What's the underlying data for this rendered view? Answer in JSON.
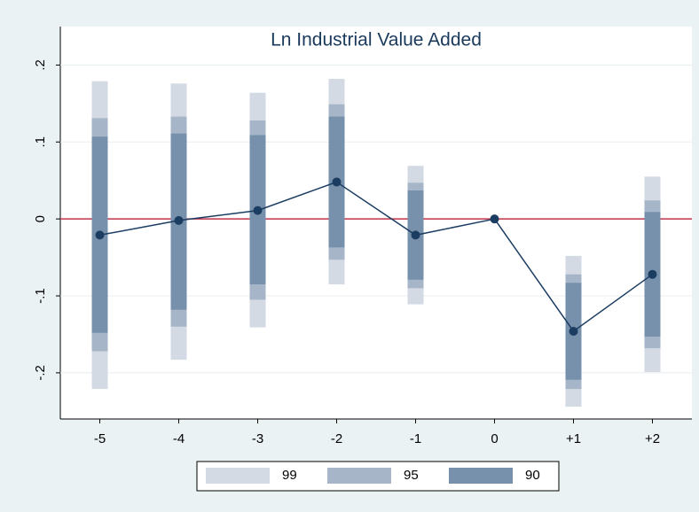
{
  "chart_data": {
    "type": "event-study",
    "title": "Ln Industrial Value Added",
    "categories": [
      "-5",
      "-4",
      "-3",
      "-2",
      "-1",
      "0",
      "+1",
      "+2"
    ],
    "ylim": [
      -0.26,
      0.25
    ],
    "yticks": [
      {
        "value": -0.2,
        "label": "-.2"
      },
      {
        "value": -0.1,
        "label": "-.1"
      },
      0,
      {
        "value": 0.1,
        "label": ".1"
      },
      {
        "value": 0.2,
        "label": ".2"
      }
    ],
    "grid": true,
    "reference_line": {
      "value": 0,
      "color": "#c0324a"
    },
    "series": [
      {
        "name": "99",
        "color": "#d3dae4",
        "lower": [
          -0.221,
          -0.183,
          -0.141,
          -0.085,
          -0.111,
          0,
          -0.244,
          -0.199
        ],
        "upper": [
          0.179,
          0.176,
          0.164,
          0.182,
          0.069,
          0,
          -0.048,
          0.055
        ]
      },
      {
        "name": "95",
        "color": "#a6b6c8",
        "lower": [
          -0.172,
          -0.14,
          -0.105,
          -0.053,
          -0.09,
          0,
          -0.221,
          -0.168
        ],
        "upper": [
          0.131,
          0.133,
          0.128,
          0.149,
          0.047,
          0,
          -0.072,
          0.024
        ]
      },
      {
        "name": "90",
        "color": "#7790ab",
        "lower": [
          -0.148,
          -0.118,
          -0.085,
          -0.037,
          -0.079,
          0,
          -0.209,
          -0.153
        ],
        "upper": [
          0.107,
          0.111,
          0.109,
          0.133,
          0.037,
          0,
          -0.083,
          0.009
        ]
      }
    ],
    "estimates": {
      "color": "#1c3d62",
      "values": [
        -0.021,
        -0.002,
        0.011,
        0.048,
        -0.021,
        0,
        -0.146,
        -0.072
      ]
    }
  }
}
